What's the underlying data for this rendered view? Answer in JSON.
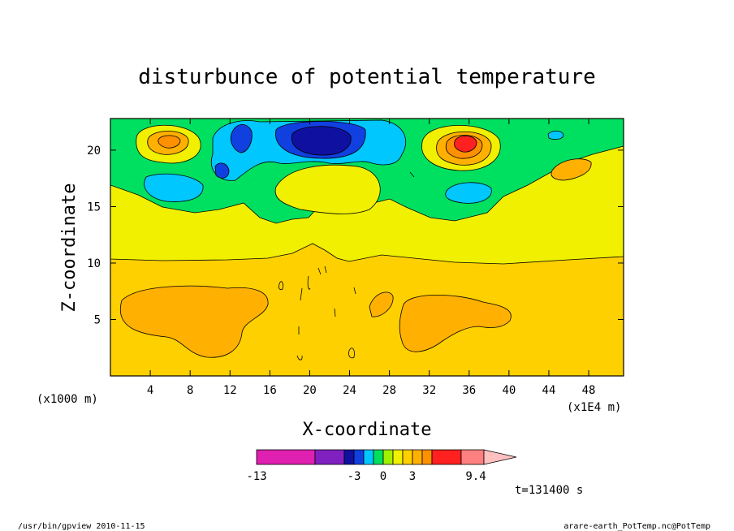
{
  "chart_data": {
    "type": "heatmap",
    "title": "disturbunce of potential temperature",
    "xlabel": "X-coordinate",
    "ylabel": "Z-coordinate",
    "x_unit": "(x1E4 m)",
    "y_unit": "(x1000 m)",
    "xlim": [
      0,
      51.5
    ],
    "ylim": [
      0,
      22.8
    ],
    "x_ticks": [
      4,
      8,
      12,
      16,
      20,
      24,
      28,
      32,
      36,
      40,
      44,
      48
    ],
    "y_ticks": [
      5,
      10,
      15,
      20
    ],
    "colorbar": {
      "colors": [
        "#e020b0",
        "#8020c0",
        "#1010a0",
        "#1040e0",
        "#00c8ff",
        "#00e060",
        "#a0f000",
        "#f0f000",
        "#ffd000",
        "#ffb000",
        "#ff9000",
        "#ff2020",
        "#ff8080",
        "#ffc0c0"
      ],
      "tick_labels": [
        "-13",
        "-3",
        "0",
        "3",
        "9.4"
      ]
    },
    "regions": [
      {
        "level": "green",
        "color": "#00e060",
        "x": [
          0,
          51.5
        ],
        "z": [
          14,
          22.8
        ]
      },
      {
        "level": "yellow",
        "color": "#f0f000",
        "x": [
          0,
          51.5
        ],
        "z": [
          10.5,
          16
        ]
      },
      {
        "level": "light-orange",
        "color": "#ffd000",
        "x": [
          0,
          51.5
        ],
        "z": [
          0,
          10.5
        ]
      },
      {
        "level": "orange",
        "color": "#ffb000",
        "x": [
          1,
          15
        ],
        "z": [
          1.5,
          8.5
        ]
      },
      {
        "level": "orange",
        "color": "#ffb000",
        "x": [
          29,
          39
        ],
        "z": [
          2,
          6.5
        ]
      },
      {
        "level": "cyan",
        "color": "#00c8ff",
        "x": [
          12,
          29
        ],
        "z": [
          17,
          22.8
        ]
      },
      {
        "level": "dark-blue",
        "color": "#1010a0",
        "x": [
          19,
          24
        ],
        "z": [
          19.5,
          22
        ]
      },
      {
        "level": "red",
        "color": "#ff2020",
        "x": [
          35,
          36
        ],
        "z": [
          20,
          21.5
        ]
      },
      {
        "level": "orange",
        "color": "#ffb000",
        "x": [
          4,
          8
        ],
        "z": [
          19,
          22.5
        ]
      }
    ],
    "time_label": "t=131400 s"
  },
  "footer": {
    "left": "/usr/bin/gpview  2010-11-15",
    "right": "arare-earth_PotTemp.nc@PotTemp"
  }
}
